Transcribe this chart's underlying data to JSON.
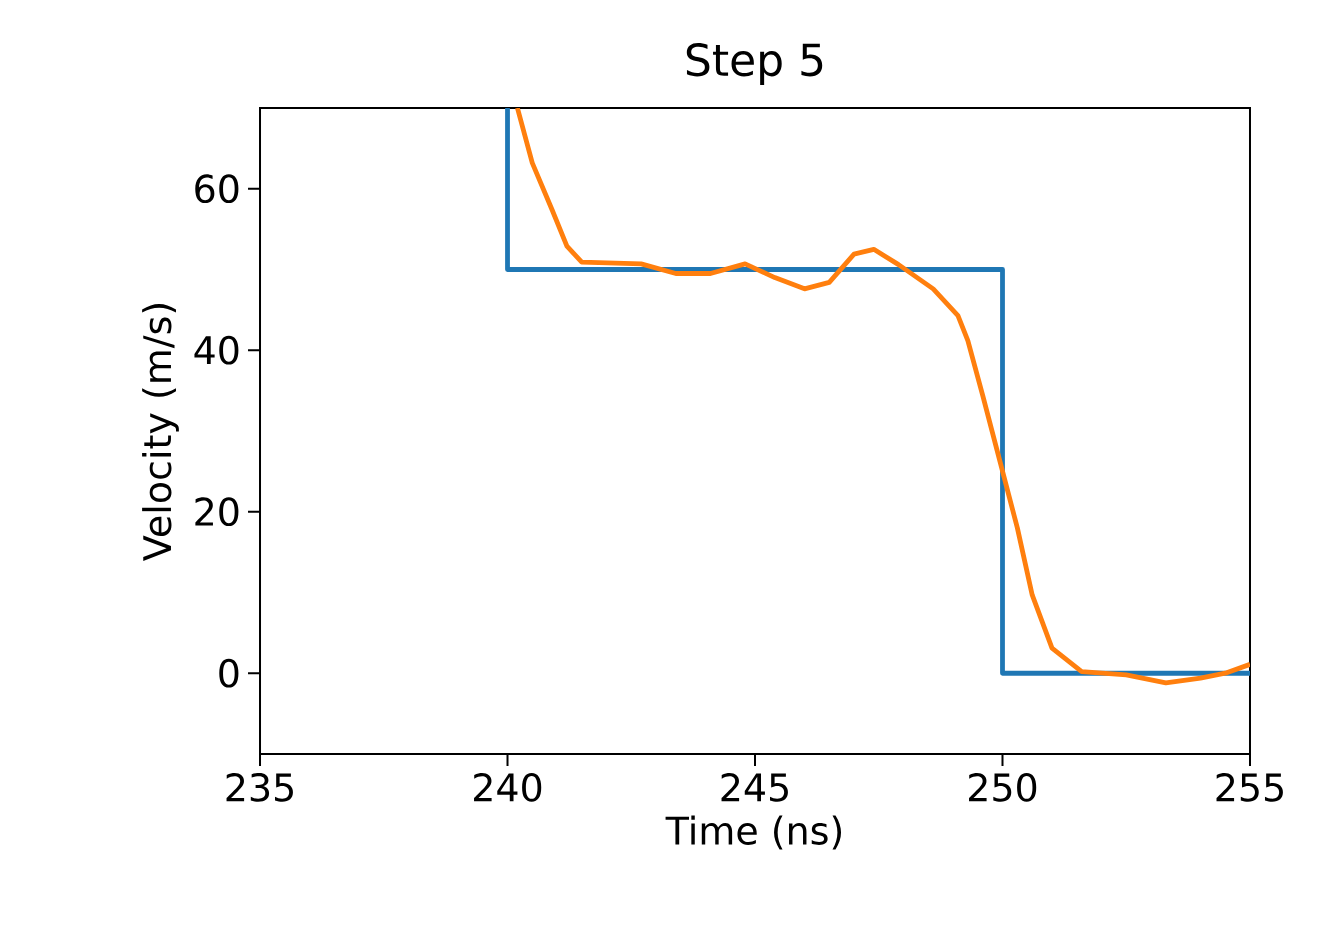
{
  "chart_data": {
    "type": "line",
    "title": "Step 5",
    "xlabel": "Time (ns)",
    "ylabel": "Velocity (m/s)",
    "xlim": [
      235,
      255
    ],
    "ylim": [
      -10,
      70
    ],
    "xticks": [
      235,
      240,
      245,
      250,
      255
    ],
    "yticks": [
      0,
      20,
      40,
      60
    ],
    "marker": "none",
    "line_style": "solid",
    "series": [
      {
        "color": "#1f77b4",
        "x": [
          240,
          240,
          250,
          250,
          255
        ],
        "values": [
          70,
          50,
          50,
          0,
          0
        ]
      },
      {
        "color": "#ff7f0e",
        "x": [
          240.2,
          240.5,
          240.9,
          241.2,
          241.5,
          242.7,
          243.4,
          244.1,
          244.8,
          245.4,
          246.0,
          246.5,
          247.0,
          247.4,
          247.9,
          248.6,
          249.1,
          249.3,
          249.6,
          249.95,
          250.3,
          250.6,
          251.0,
          251.6,
          252.5,
          253.3,
          254.0,
          254.5,
          255
        ],
        "values": [
          70,
          63.2,
          57.4,
          52.9,
          50.9,
          50.7,
          49.5,
          49.5,
          50.7,
          49.0,
          47.6,
          48.4,
          51.9,
          52.5,
          50.6,
          47.6,
          44.3,
          41.2,
          34.4,
          26.2,
          18.0,
          9.7,
          3.1,
          0.2,
          -0.2,
          -1.2,
          -0.6,
          0,
          1.1
        ]
      }
    ]
  }
}
